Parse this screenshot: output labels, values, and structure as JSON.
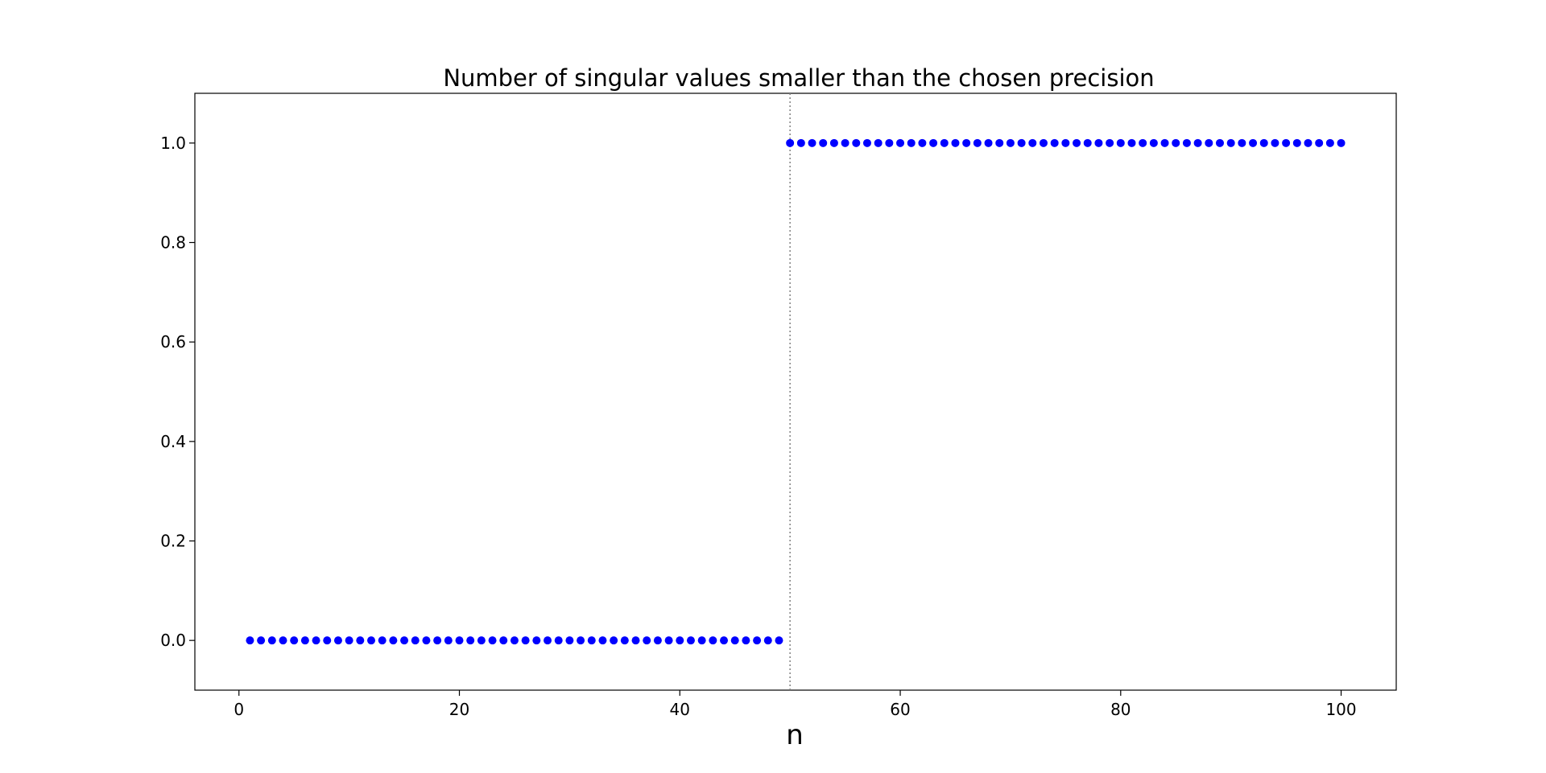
{
  "chart_data": {
    "type": "scatter",
    "title": "Number of singular values smaller than the chosen precision",
    "xlabel": "n",
    "ylabel": "",
    "xlim": [
      -4,
      105
    ],
    "ylim": [
      -0.1,
      1.1
    ],
    "xticks": [
      0,
      20,
      40,
      60,
      80,
      100
    ],
    "xtick_labels": [
      "0",
      "20",
      "40",
      "60",
      "80",
      "100"
    ],
    "yticks": [
      0.0,
      0.2,
      0.4,
      0.6,
      0.8,
      1.0
    ],
    "ytick_labels": [
      "0.0",
      "0.2",
      "0.4",
      "0.6",
      "0.8",
      "1.0"
    ],
    "grid": false,
    "marker_color": "#0000ff",
    "vline": {
      "x": 50,
      "style": "dotted",
      "color": "#808080"
    },
    "series": [
      {
        "x": [
          1,
          2,
          3,
          4,
          5,
          6,
          7,
          8,
          9,
          10,
          11,
          12,
          13,
          14,
          15,
          16,
          17,
          18,
          19,
          20,
          21,
          22,
          23,
          24,
          25,
          26,
          27,
          28,
          29,
          30,
          31,
          32,
          33,
          34,
          35,
          36,
          37,
          38,
          39,
          40,
          41,
          42,
          43,
          44,
          45,
          46,
          47,
          48,
          49,
          50,
          51,
          52,
          53,
          54,
          55,
          56,
          57,
          58,
          59,
          60,
          61,
          62,
          63,
          64,
          65,
          66,
          67,
          68,
          69,
          70,
          71,
          72,
          73,
          74,
          75,
          76,
          77,
          78,
          79,
          80,
          81,
          82,
          83,
          84,
          85,
          86,
          87,
          88,
          89,
          90,
          91,
          92,
          93,
          94,
          95,
          96,
          97,
          98,
          99,
          100
        ],
        "y": [
          0,
          0,
          0,
          0,
          0,
          0,
          0,
          0,
          0,
          0,
          0,
          0,
          0,
          0,
          0,
          0,
          0,
          0,
          0,
          0,
          0,
          0,
          0,
          0,
          0,
          0,
          0,
          0,
          0,
          0,
          0,
          0,
          0,
          0,
          0,
          0,
          0,
          0,
          0,
          0,
          0,
          0,
          0,
          0,
          0,
          0,
          0,
          0,
          0,
          1,
          1,
          1,
          1,
          1,
          1,
          1,
          1,
          1,
          1,
          1,
          1,
          1,
          1,
          1,
          1,
          1,
          1,
          1,
          1,
          1,
          1,
          1,
          1,
          1,
          1,
          1,
          1,
          1,
          1,
          1,
          1,
          1,
          1,
          1,
          1,
          1,
          1,
          1,
          1,
          1,
          1,
          1,
          1,
          1,
          1,
          1,
          1,
          1,
          1,
          1
        ]
      }
    ]
  }
}
